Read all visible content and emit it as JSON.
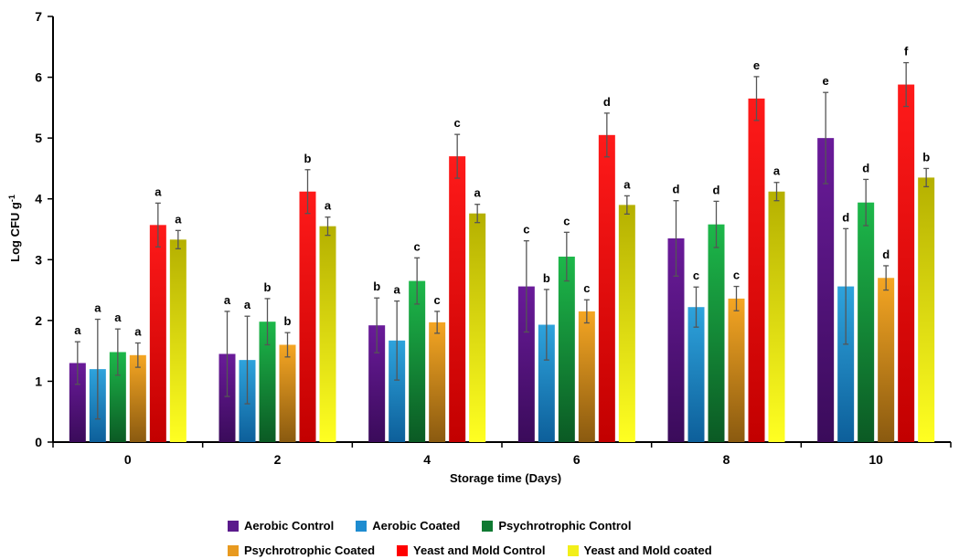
{
  "chart_data": {
    "type": "bar",
    "xlabel": "Storage time (Days)",
    "ylabel_main": "Log CFU g",
    "ylabel_sup": "-1",
    "ylim": [
      0,
      7
    ],
    "yticks": [
      0,
      1,
      2,
      3,
      4,
      5,
      6,
      7
    ],
    "categories": [
      "0",
      "2",
      "4",
      "6",
      "8",
      "10"
    ],
    "grid": false,
    "legend_position": "bottom",
    "series": [
      {
        "name": "Aerobic Control",
        "color_top": "#6a1b9a",
        "color_bottom": "#3a0b5a",
        "swatch": "#5a1a8c",
        "values": [
          1.3,
          1.45,
          1.92,
          2.56,
          3.35,
          5.0
        ],
        "errors": [
          0.35,
          0.7,
          0.45,
          0.75,
          0.62,
          0.75
        ],
        "labels": [
          "a",
          "a",
          "b",
          "c",
          "d",
          "e"
        ]
      },
      {
        "name": "Aerobic Coated",
        "color_top": "#2ea3dc",
        "color_bottom": "#0d5f9a",
        "swatch": "#1e8cd0",
        "values": [
          1.2,
          1.35,
          1.67,
          1.93,
          2.22,
          2.56
        ],
        "errors": [
          0.82,
          0.72,
          0.65,
          0.58,
          0.33,
          0.95
        ],
        "labels": [
          "a",
          "a",
          "a",
          "b",
          "c",
          "d"
        ]
      },
      {
        "name": "Psychrotrophic Control",
        "color_top": "#1db84a",
        "color_bottom": "#0b5a24",
        "swatch": "#0f7a32",
        "values": [
          1.48,
          1.98,
          2.65,
          3.05,
          3.58,
          3.94
        ],
        "errors": [
          0.38,
          0.38,
          0.38,
          0.4,
          0.38,
          0.38
        ],
        "labels": [
          "a",
          "b",
          "c",
          "c",
          "d",
          "d"
        ]
      },
      {
        "name": "Psychrotrophic Coated",
        "color_top": "#f5a623",
        "color_bottom": "#8a5a10",
        "swatch": "#e89a20",
        "values": [
          1.43,
          1.6,
          1.97,
          2.15,
          2.36,
          2.7
        ],
        "errors": [
          0.2,
          0.2,
          0.18,
          0.19,
          0.2,
          0.2
        ],
        "labels": [
          "a",
          "b",
          "c",
          "c",
          "c",
          "d"
        ]
      },
      {
        "name": "Yeast and Mold Control",
        "color_top": "#ff1a1a",
        "color_bottom": "#c20000",
        "swatch": "#ff0000",
        "values": [
          3.57,
          4.12,
          4.7,
          5.05,
          5.65,
          5.88
        ],
        "errors": [
          0.36,
          0.36,
          0.36,
          0.36,
          0.36,
          0.36
        ],
        "labels": [
          "a",
          "b",
          "c",
          "d",
          "e",
          "f"
        ]
      },
      {
        "name": "Yeast and Mold coated",
        "color_top": "#b5b000",
        "color_bottom": "#ffff22",
        "swatch": "#f2ef1a",
        "values": [
          3.33,
          3.55,
          3.76,
          3.9,
          4.12,
          4.35
        ],
        "errors": [
          0.15,
          0.15,
          0.15,
          0.15,
          0.15,
          0.15
        ],
        "labels": [
          "a",
          "a",
          "a",
          "a",
          "a",
          "b"
        ]
      }
    ]
  }
}
